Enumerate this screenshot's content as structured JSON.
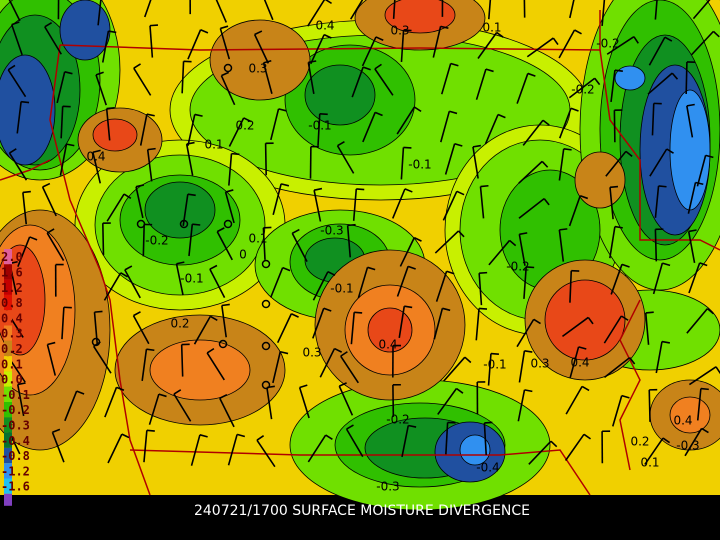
{
  "map": {
    "title": "240721/1700 SURFACE MOISTURE DIVERGENCE",
    "legend": [
      {
        "label": "2.0",
        "color": "#e0609a"
      },
      {
        "label": "1.6",
        "color": "#a00000"
      },
      {
        "label": "1.2",
        "color": "#c40000"
      },
      {
        "label": "0.8",
        "color": "#e01000"
      },
      {
        "label": "0.4",
        "color": "#e84818"
      },
      {
        "label": "0.3",
        "color": "#f08020"
      },
      {
        "label": "0.2",
        "color": "#c88418"
      },
      {
        "label": "0.1",
        "color": "#f0d000"
      },
      {
        "label": "0.0",
        "color": "#c8f000"
      },
      {
        "label": "-0.1",
        "color": "#70e000"
      },
      {
        "label": "-0.2",
        "color": "#30c000"
      },
      {
        "label": "-0.3",
        "color": "#109020"
      },
      {
        "label": "-0.4",
        "color": "#087030"
      },
      {
        "label": "-0.8",
        "color": "#2050a0"
      },
      {
        "label": "-1.2",
        "color": "#3090f0"
      },
      {
        "label": "-1.6",
        "color": "#20c0f0"
      }
    ],
    "contour_labels": [
      "0.3",
      "0.3",
      "0.1",
      "-0.2",
      "0.2",
      "0.1",
      "-0.1",
      "0.4",
      "-0.3",
      "-0.2",
      "-0.1",
      "0.1",
      "0",
      "-0.2",
      "-0.1",
      "0.2",
      "0.3",
      "0.4",
      "0.3",
      "0.4",
      "-0.2",
      "-0.4",
      "-0.3",
      "0.4",
      "-0.3",
      "0.2",
      "0.1",
      "-0.2",
      "-0.1",
      "0.4",
      "-0.1"
    ]
  }
}
